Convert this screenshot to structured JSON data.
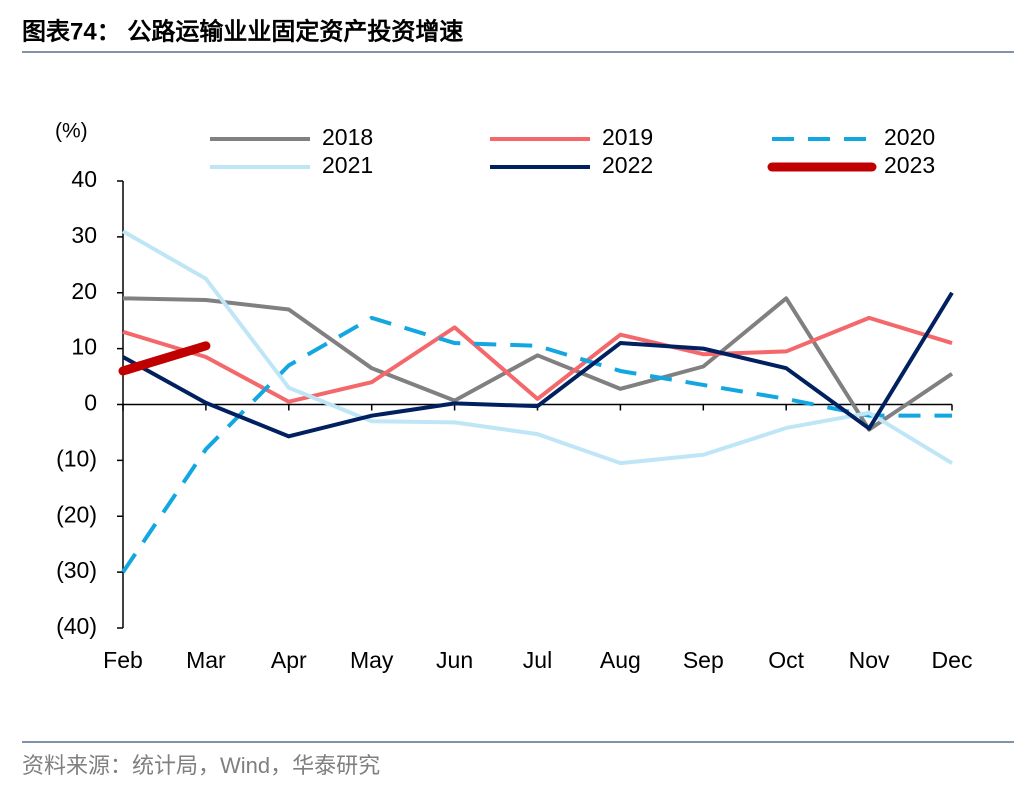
{
  "chart_data": {
    "type": "line",
    "title": "图表74：  公路运输业业固定资产投资增速",
    "source": "资料来源：统计局，Wind，华泰研究",
    "y_unit": "(%)",
    "categories": [
      "Feb",
      "Mar",
      "Apr",
      "May",
      "Jun",
      "Jul",
      "Aug",
      "Sep",
      "Oct",
      "Nov",
      "Dec"
    ],
    "ylim": [
      -40,
      40
    ],
    "yticks": [
      {
        "value": -40,
        "label": "(40)"
      },
      {
        "value": -30,
        "label": "(30)"
      },
      {
        "value": -20,
        "label": "(20)"
      },
      {
        "value": -10,
        "label": "(10)"
      },
      0,
      10,
      20,
      30,
      40
    ],
    "series": [
      {
        "name": "2018",
        "color": "#808080",
        "line_style": "solid",
        "line_width": 4,
        "values": [
          19,
          18.7,
          17,
          6.5,
          0.7,
          8.8,
          2.8,
          6.8,
          19,
          -4.5,
          5.5
        ]
      },
      {
        "name": "2019",
        "color": "#f4676a",
        "line_style": "solid",
        "line_width": 4,
        "values": [
          13,
          8.5,
          0.5,
          4,
          13.8,
          1,
          12.5,
          9,
          9.5,
          15.5,
          11
        ]
      },
      {
        "name": "2020",
        "color": "#12a7e0",
        "line_style": "dashed",
        "line_width": 4,
        "values": [
          -30,
          -8,
          7,
          15.5,
          11,
          10.5,
          6,
          3.5,
          1,
          -2,
          -2
        ]
      },
      {
        "name": "2021",
        "color": "#bfe6f7",
        "line_style": "solid",
        "line_width": 4,
        "values": [
          31,
          22.5,
          3,
          -3,
          -3.2,
          -5.3,
          -10.5,
          -9,
          -4.2,
          -1.5,
          -10.5
        ]
      },
      {
        "name": "2022",
        "color": "#002060",
        "line_style": "solid",
        "line_width": 4,
        "values": [
          8.5,
          0.3,
          -5.7,
          -2,
          0.2,
          -0.3,
          11,
          10,
          6.5,
          -4.3,
          20
        ]
      },
      {
        "name": "2023",
        "color": "#c00000",
        "line_style": "solid",
        "line_width": 9,
        "values": [
          6,
          10.5,
          null,
          null,
          null,
          null,
          null,
          null,
          null,
          null,
          null
        ]
      }
    ]
  }
}
